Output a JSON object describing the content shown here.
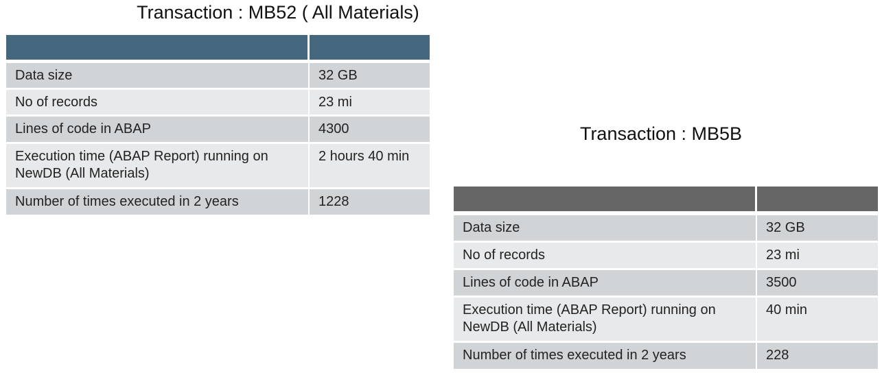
{
  "tables": [
    {
      "title": "Transaction : MB52 ( All Materials)",
      "rows": [
        [
          "Data size",
          "32 GB"
        ],
        [
          "No of records",
          "23 mi"
        ],
        [
          "Lines of code in ABAP",
          "4300"
        ],
        [
          "Execution time (ABAP Report) running on NewDB (All Materials)",
          "2 hours 40 min"
        ],
        [
          "Number of times executed in 2 years",
          "1228"
        ]
      ]
    },
    {
      "title": "Transaction : MB5B",
      "rows": [
        [
          "Data size",
          "32 GB"
        ],
        [
          "No of records",
          "23 mi"
        ],
        [
          "Lines of code in ABAP",
          "3500"
        ],
        [
          "Execution time (ABAP Report) running on NewDB (All Materials)",
          "40 min"
        ],
        [
          "Number of times executed in 2 years",
          "228"
        ]
      ]
    }
  ]
}
